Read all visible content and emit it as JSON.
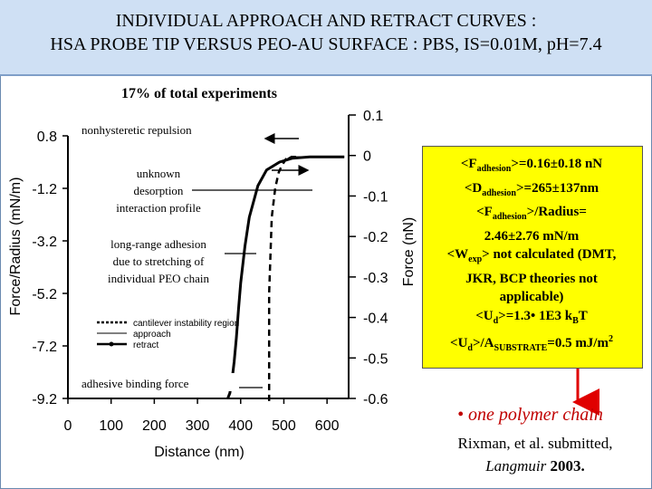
{
  "header": {
    "title_line1": "INDIVIDUAL APPROACH AND RETRACT CURVES :",
    "title_line2": "HSA PROBE TIP VERSUS PEO-AU SURFACE : PBS, IS=0.01M, pH=7.4"
  },
  "subtitle": "17% of total experiments",
  "colors": {
    "header_bg": "#cfe0f4",
    "box_bg": "#ffff00",
    "accent_red": "#c00000",
    "arrow_red": "#e00000"
  },
  "chart_data": {
    "type": "line",
    "xlabel": "Distance (nm)",
    "ylabel_left": "Force/Radius (mN/m)",
    "ylabel_right": "Force (nN)",
    "x_ticks": [
      "0",
      "100",
      "200",
      "300",
      "400",
      "500",
      "600"
    ],
    "xlim": [
      0,
      650
    ],
    "y_left_ticks": [
      "0.8",
      "-1.2",
      "-3.2",
      "-5.2",
      "-7.2",
      "-9.2"
    ],
    "ylim_left": [
      -9.2,
      0.8
    ],
    "y_right_ticks": [
      "0.1",
      "0",
      "-0.1",
      "-0.2",
      "-0.3",
      "-0.4",
      "-0.5",
      "-0.6"
    ],
    "ylim_right": [
      -0.6,
      0.1
    ],
    "series": [
      {
        "name": "cantilever instability region",
        "style": "dotted",
        "x": [
          466,
          466,
          472,
          480,
          488,
          496,
          504,
          512,
          520,
          528
        ],
        "y": [
          -9.3,
          -5.2,
          -2.3,
          -1.2,
          -0.6,
          -0.3,
          -0.1,
          0.0,
          0.0,
          0.0
        ]
      },
      {
        "name": "approach",
        "style": "solid-thin",
        "x": [
          500,
          505,
          510,
          515,
          520,
          530,
          560,
          600,
          640
        ],
        "y": [
          -0.25,
          -0.12,
          -0.05,
          0.0,
          0.0,
          0.0,
          0.0,
          0.0,
          0.0
        ]
      },
      {
        "name": "retract",
        "style": "solid-thick",
        "x": [
          370,
          375,
          380,
          385,
          390,
          395,
          400,
          410,
          420,
          440,
          460,
          490,
          520,
          560,
          600,
          640
        ],
        "y": [
          -9.2,
          -9.0,
          -8.5,
          -7.8,
          -6.9,
          -5.8,
          -4.8,
          -3.4,
          -2.3,
          -1.1,
          -0.5,
          -0.2,
          -0.05,
          0.0,
          0.0,
          0.0
        ]
      }
    ],
    "legend": [
      "cantilever instability region",
      "approach",
      "retract"
    ],
    "legend_position": "lower-left"
  },
  "annotations": {
    "nonhysteretic": "nonhysteretic repulsion",
    "unknown": [
      "unknown",
      "desorption",
      "interaction profile"
    ],
    "longrange": [
      "long-range adhesion",
      "due to stretching of",
      "individual PEO chain"
    ],
    "adhesive": "adhesive binding force"
  },
  "stats": {
    "l1_a": "<F",
    "l1_sub": "adhesion",
    "l1_b": ">=0.16±0.18 nN",
    "l2_a": "<D",
    "l2_sub": "adhesion",
    "l2_b": ">=265±137nm",
    "l3_a": "<F",
    "l3_sub": "adhesion",
    "l3_b": ">/Radius=",
    "l4": "2.46±2.76 mN/m",
    "l5_a": "<W",
    "l5_sub": "exp",
    "l5_b": "> not calculated (DMT,",
    "l6": "JKR, BCP theories not",
    "l7": "applicable)",
    "l8_a": "<U",
    "l8_sub": "d",
    "l8_b": ">=1.3• 1E3 k",
    "l8_sub2": "B",
    "l8_c": "T",
    "l9_a": "<U",
    "l9_sub": "d",
    "l9_b": ">/A",
    "l9_sub2": "SUBSTRATE",
    "l9_c": "=0.5 mJ/m",
    "l9_sup": "2"
  },
  "polymer_note": "• one polymer chain",
  "citation": {
    "line1": "Rixman, et al. submitted,",
    "journal": "Langmuir",
    "year": " 2003."
  }
}
